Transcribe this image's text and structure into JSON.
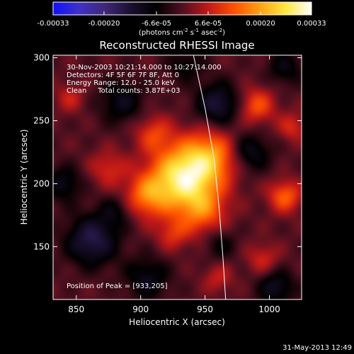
{
  "chart_data": {
    "type": "heatmap",
    "title": "Reconstructed RHESSI Image",
    "xlabel": "Heliocentric X (arcsec)",
    "ylabel": "Heliocentric Y (arcsec)",
    "xlim": [
      832,
      1025
    ],
    "ylim": [
      108,
      302
    ],
    "x_ticks": [
      850,
      900,
      950,
      1000
    ],
    "y_ticks": [
      150,
      200,
      250,
      300
    ],
    "colorbar": {
      "min": -0.00033,
      "max": 0.00033,
      "tick_values": [
        -0.00033,
        -0.0002,
        -6.6e-05,
        6.6e-05,
        0.0002,
        0.00033
      ],
      "tick_labels": [
        "-0.00033",
        "-0.00020",
        "-6.6e-05",
        "6.6e-05",
        "0.00020",
        "0.00033"
      ],
      "units_parts": [
        "(photons cm",
        "-2",
        " s",
        "-1",
        " asec",
        "-2",
        ")"
      ]
    },
    "info_lines": [
      "30-Nov-2003 10:21:14.000 to 10:27:14.000",
      "Detectors: 4F 5F 6F 7F 8F, Att 0",
      "Energy Range: 12.0 - 25.0 keV",
      "Clean     Total counts: 3.87E+03"
    ],
    "peak_label": "Position of Peak = [933,205]",
    "peak_position": [
      933,
      205
    ],
    "sources": [
      {
        "x": 933,
        "y": 205,
        "amp": 1.0,
        "sigma": 18
      },
      {
        "x": 955,
        "y": 222,
        "amp": 0.55,
        "sigma": 15
      },
      {
        "x": 905,
        "y": 190,
        "amp": 0.5,
        "sigma": 12
      },
      {
        "x": 948,
        "y": 178,
        "amp": 0.45,
        "sigma": 13
      },
      {
        "x": 1012,
        "y": 190,
        "amp": 0.5,
        "sigma": 9
      },
      {
        "x": 990,
        "y": 262,
        "amp": 0.45,
        "sigma": 10
      },
      {
        "x": 910,
        "y": 240,
        "amp": 0.35,
        "sigma": 10
      },
      {
        "x": 925,
        "y": 160,
        "amp": 0.3,
        "sigma": 9
      },
      {
        "x": 875,
        "y": 212,
        "amp": 0.3,
        "sigma": 10
      },
      {
        "x": 995,
        "y": 140,
        "amp": 0.28,
        "sigma": 9
      },
      {
        "x": 960,
        "y": 125,
        "amp": 0.25,
        "sigma": 8
      },
      {
        "x": 845,
        "y": 268,
        "amp": 0.25,
        "sigma": 8
      },
      {
        "x": 1018,
        "y": 245,
        "amp": 0.3,
        "sigma": 8
      },
      {
        "x": 862,
        "y": 155,
        "amp": -0.55,
        "sigma": 14
      },
      {
        "x": 960,
        "y": 263,
        "amp": -0.5,
        "sigma": 12
      },
      {
        "x": 985,
        "y": 225,
        "amp": -0.4,
        "sigma": 11
      },
      {
        "x": 885,
        "y": 265,
        "amp": -0.35,
        "sigma": 12
      },
      {
        "x": 1005,
        "y": 118,
        "amp": -0.4,
        "sigma": 10
      },
      {
        "x": 905,
        "y": 125,
        "amp": -0.35,
        "sigma": 12
      },
      {
        "x": 840,
        "y": 200,
        "amp": -0.35,
        "sigma": 10
      },
      {
        "x": 1012,
        "y": 292,
        "amp": -0.3,
        "sigma": 10
      },
      {
        "x": 962,
        "y": 152,
        "amp": -0.25,
        "sigma": 9
      },
      {
        "x": 880,
        "y": 178,
        "amp": -0.25,
        "sigma": 9
      },
      {
        "x": 935,
        "y": 295,
        "amp": -0.25,
        "sigma": 10
      }
    ],
    "limb_curve": [
      [
        941,
        302
      ],
      [
        950,
        260
      ],
      [
        957,
        220
      ],
      [
        961,
        180
      ],
      [
        964,
        140
      ],
      [
        966,
        108
      ]
    ],
    "colormap": [
      "#1010ff",
      "#4030c8",
      "#402878",
      "#1a1030",
      "#000000",
      "#501020",
      "#c01818",
      "#ff5000",
      "#ffa010",
      "#ffe840",
      "#ffffff"
    ]
  },
  "footer_date": "31-May-2013 12:49"
}
